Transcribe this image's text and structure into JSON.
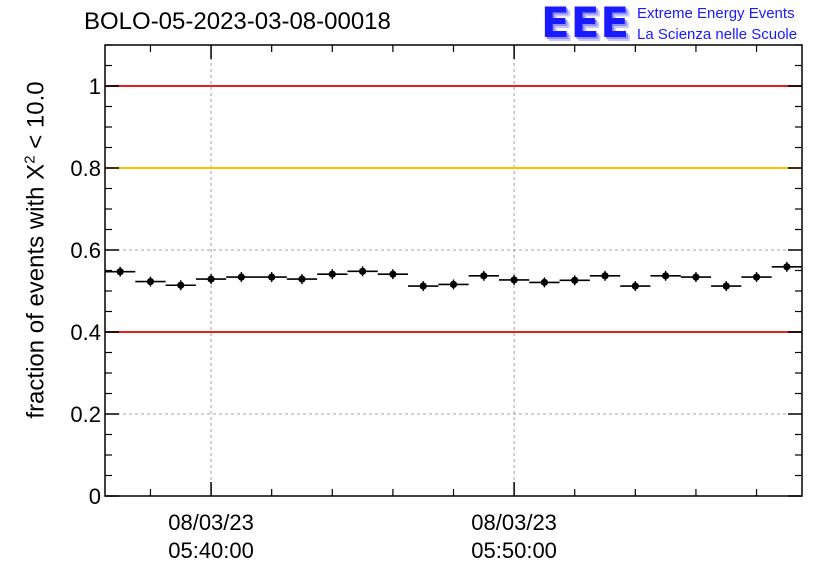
{
  "title": "BOLO-05-2023-03-08-00018",
  "logo": {
    "mark": "EEE",
    "line1": "Extreme Energy Events",
    "line2": "La Scienza nelle Scuole",
    "color": "#1a1aff"
  },
  "chart_data": {
    "type": "scatter",
    "title": "BOLO-05-2023-03-08-00018",
    "ylabel_prefix": "fraction of events with X",
    "ylabel_sup": "2",
    "ylabel_suffix": " < 10.0",
    "xlim": [
      "05:36:30",
      "05:59:30"
    ],
    "ylim": [
      0,
      1.1
    ],
    "grid": true,
    "x_ticks": [
      {
        "time": "05:40:00",
        "label_date": "08/03/23",
        "label_time": "05:40:00"
      },
      {
        "time": "05:50:00",
        "label_date": "08/03/23",
        "label_time": "05:50:00"
      }
    ],
    "y_ticks": [
      {
        "value": 0,
        "label": "0"
      },
      {
        "value": 0.2,
        "label": "0.2"
      },
      {
        "value": 0.4,
        "label": "0.4"
      },
      {
        "value": 0.6,
        "label": "0.6"
      },
      {
        "value": 0.8,
        "label": "0.8"
      },
      {
        "value": 1,
        "label": "1"
      }
    ],
    "reference_lines": [
      {
        "y": 1.0,
        "color": "#e8201a"
      },
      {
        "y": 0.8,
        "color": "#ffc000"
      },
      {
        "y": 0.4,
        "color": "#e8201a"
      }
    ],
    "bin_width_minutes": 1,
    "series": [
      {
        "marker_color": "#000000",
        "points": [
          {
            "x": "05:37:00",
            "y": 0.547
          },
          {
            "x": "05:38:00",
            "y": 0.523
          },
          {
            "x": "05:39:00",
            "y": 0.514
          },
          {
            "x": "05:40:00",
            "y": 0.529
          },
          {
            "x": "05:41:00",
            "y": 0.534
          },
          {
            "x": "05:42:00",
            "y": 0.534
          },
          {
            "x": "05:43:00",
            "y": 0.529
          },
          {
            "x": "05:44:00",
            "y": 0.541
          },
          {
            "x": "05:45:00",
            "y": 0.548
          },
          {
            "x": "05:46:00",
            "y": 0.541
          },
          {
            "x": "05:47:00",
            "y": 0.512
          },
          {
            "x": "05:48:00",
            "y": 0.516
          },
          {
            "x": "05:49:00",
            "y": 0.537
          },
          {
            "x": "05:50:00",
            "y": 0.527
          },
          {
            "x": "05:51:00",
            "y": 0.521
          },
          {
            "x": "05:52:00",
            "y": 0.526
          },
          {
            "x": "05:53:00",
            "y": 0.537
          },
          {
            "x": "05:54:00",
            "y": 0.512
          },
          {
            "x": "05:55:00",
            "y": 0.537
          },
          {
            "x": "05:56:00",
            "y": 0.534
          },
          {
            "x": "05:57:00",
            "y": 0.512
          },
          {
            "x": "05:58:00",
            "y": 0.534
          },
          {
            "x": "05:59:00",
            "y": 0.559
          }
        ]
      }
    ]
  }
}
